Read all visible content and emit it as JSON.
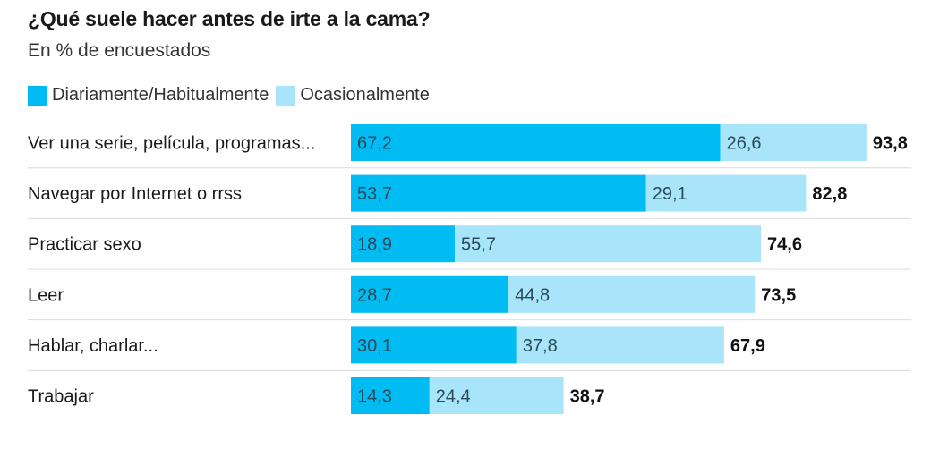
{
  "chart_data": {
    "type": "bar",
    "stacked": true,
    "orientation": "horizontal",
    "title": "¿Qué suele hacer antes de irte a la cama?",
    "subtitle": "En % de encuestados",
    "categories": [
      "Ver una serie, película, programas...",
      "Navegar por Internet o rrss",
      "Practicar sexo",
      "Leer",
      "Hablar, charlar...",
      "Trabajar"
    ],
    "series": [
      {
        "name": "Diariamente/Habitualmente",
        "color": "#00bcf2",
        "values": [
          67.2,
          53.7,
          18.9,
          28.7,
          30.1,
          14.3
        ],
        "labels": [
          "67,2",
          "53,7",
          "18,9",
          "28,7",
          "30,1",
          "14,3"
        ]
      },
      {
        "name": "Ocasionalmente",
        "color": "#a8e4fa",
        "values": [
          26.6,
          29.1,
          55.7,
          44.8,
          37.8,
          24.4
        ],
        "labels": [
          "26,6",
          "29,1",
          "55,7",
          "44,8",
          "37,8",
          "24,4"
        ]
      }
    ],
    "totals": [
      93.8,
      82.8,
      74.6,
      73.5,
      67.9,
      38.7
    ],
    "total_labels": [
      "93,8",
      "82,8",
      "74,6",
      "73,5",
      "67,9",
      "38,7"
    ],
    "xlim": [
      0,
      100
    ],
    "grid": false,
    "legend_position": "top-left"
  }
}
